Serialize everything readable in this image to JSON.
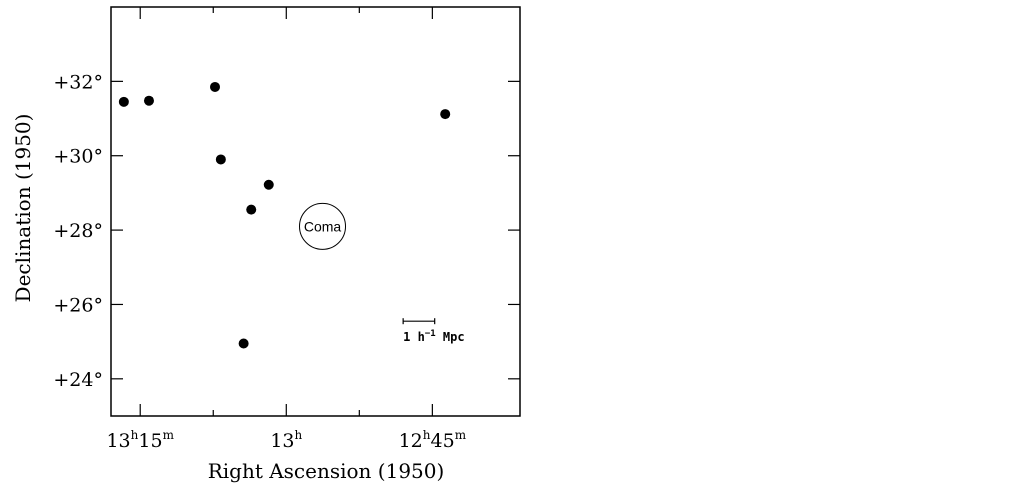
{
  "chart_data": {
    "type": "scatter",
    "xlabel": "Right Ascension (1950)",
    "ylabel": "Declination (1950)",
    "x_unit": "hours",
    "xlim": [
      13.3,
      12.6
    ],
    "ylim": [
      23.0,
      34.0
    ],
    "x_ticks": [
      {
        "value": 13.25,
        "h": "13",
        "h_sup": "h",
        "m": "15",
        "m_sup": "m"
      },
      {
        "value": 13.0,
        "h": "13",
        "h_sup": "h",
        "m": "",
        "m_sup": ""
      },
      {
        "value": 12.75,
        "h": "12",
        "h_sup": "h",
        "m": "45",
        "m_sup": "m"
      }
    ],
    "x_minor_ticks": [
      13.125,
      12.875
    ],
    "y_ticks": [
      {
        "value": 24,
        "label": "+24°"
      },
      {
        "value": 26,
        "label": "+26°"
      },
      {
        "value": 28,
        "label": "+28°"
      },
      {
        "value": 30,
        "label": "+30°"
      },
      {
        "value": 32,
        "label": "+32°"
      }
    ],
    "points": [
      {
        "x": 13.278,
        "y": 31.45
      },
      {
        "x": 13.235,
        "y": 31.48
      },
      {
        "x": 13.122,
        "y": 31.85
      },
      {
        "x": 13.112,
        "y": 29.9
      },
      {
        "x": 13.03,
        "y": 29.22
      },
      {
        "x": 13.06,
        "y": 28.55
      },
      {
        "x": 13.073,
        "y": 24.95
      },
      {
        "x": 12.728,
        "y": 31.12
      }
    ],
    "annotations": {
      "cluster": {
        "label": "Coma",
        "x": 12.938,
        "y": 28.1
      },
      "scale_bar": {
        "label": "1 h",
        "sup": "−1",
        "unit": " Mpc",
        "x_start": 12.8,
        "x_end": 12.746,
        "y": 25.55
      }
    }
  }
}
